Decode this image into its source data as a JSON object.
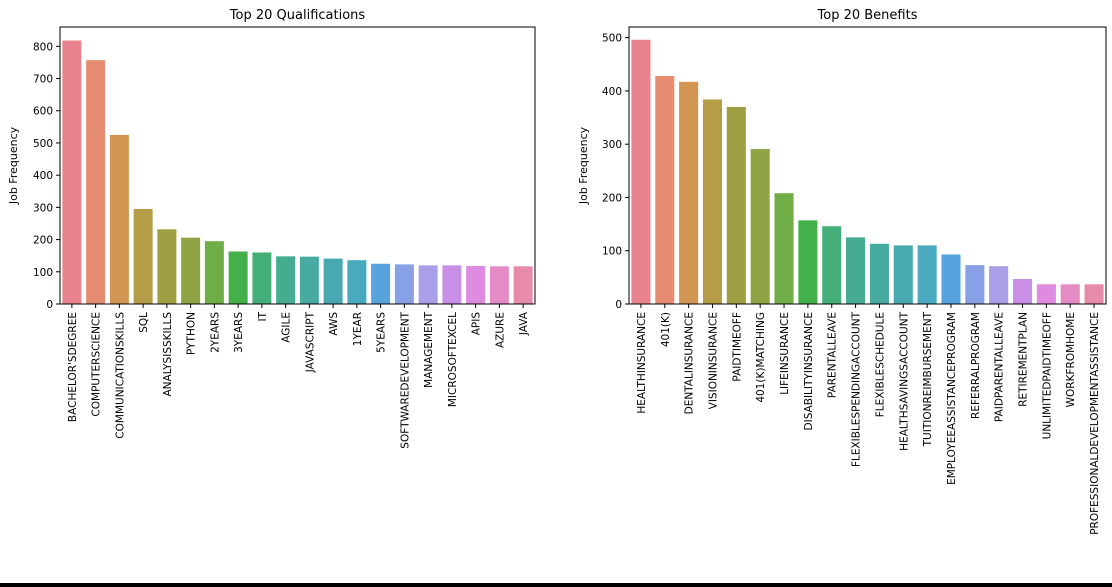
{
  "chart_data": [
    {
      "type": "bar",
      "title": "Top 20 Qualifications",
      "xlabel": "",
      "ylabel": "Job Frequency",
      "ylim": [
        0,
        860
      ],
      "yticks": [
        0,
        100,
        200,
        300,
        400,
        500,
        600,
        700,
        800
      ],
      "grid": false,
      "categories": [
        "BACHELOR'SDEGREE",
        "COMPUTERSCIENCE",
        "COMMUNICATIONSKILLS",
        "SQL",
        "ANALYSISSKILLS",
        "PYTHON",
        "2YEARS",
        "3YEARS",
        "IT",
        "AGILE",
        "JAVASCRIPT",
        "AWS",
        "1YEAR",
        "5YEARS",
        "SOFTWAREDEVELOPMENT",
        "MANAGEMENT",
        "MICROSOFTEXCEL",
        "APIS",
        "AZURE",
        "JAVA"
      ],
      "values": [
        818,
        757,
        525,
        295,
        232,
        206,
        195,
        163,
        160,
        148,
        147,
        141,
        136,
        125,
        123,
        120,
        120,
        118,
        117,
        117
      ],
      "colors": [
        "#e8828c",
        "#e58d72",
        "#d29552",
        "#b59c47",
        "#9fa043",
        "#8fa545",
        "#6fae47",
        "#44b04a",
        "#44ae78",
        "#45ac92",
        "#47aba2",
        "#48aab0",
        "#4aa9be",
        "#56a3de",
        "#88a0e6",
        "#a99ee8",
        "#c98fe6",
        "#e08be2",
        "#e48ac5",
        "#e88aaa"
      ]
    },
    {
      "type": "bar",
      "title": "Top 20 Benefits",
      "xlabel": "",
      "ylabel": "Job Frequency",
      "ylim": [
        0,
        520
      ],
      "yticks": [
        0,
        100,
        200,
        300,
        400,
        500
      ],
      "grid": false,
      "categories": [
        "HEALTHINSURANCE",
        "401(K)",
        "DENTALINSURANCE",
        "VISIONINSURANCE",
        "PAIDTIMEOFF",
        "401(K)MATCHING",
        "LIFEINSURANCE",
        "DISABILITYINSURANCE",
        "PARENTALLEAVE",
        "FLEXIBLESPENDINGACCOUNT",
        "FLEXIBLESCHEDULE",
        "HEALTHSAVINGSACCOUNT",
        "TUITIONREIMBURSEMENT",
        "EMPLOYEEASSISTANCEPROGRAM",
        "REFERRALPROGRAM",
        "PAIDPARENTALLEAVE",
        "RETIREMENTPLAN",
        "UNLIMITEDPAIDTIMEOFF",
        "WORKFROMHOME",
        "PROFESSIONALDEVELOPMENTASSISTANCE"
      ],
      "values": [
        496,
        428,
        417,
        384,
        370,
        291,
        208,
        157,
        146,
        125,
        113,
        110,
        110,
        93,
        73,
        71,
        47,
        37,
        37,
        37
      ],
      "colors": [
        "#e8828c",
        "#e58d72",
        "#d29552",
        "#b59c47",
        "#9fa043",
        "#8fa545",
        "#6fae47",
        "#44b04a",
        "#44ae78",
        "#45ac92",
        "#47aba2",
        "#48aab0",
        "#4aa9be",
        "#56a3de",
        "#88a0e6",
        "#a99ee8",
        "#c98fe6",
        "#e08be2",
        "#e48ac5",
        "#e88aaa"
      ]
    }
  ]
}
